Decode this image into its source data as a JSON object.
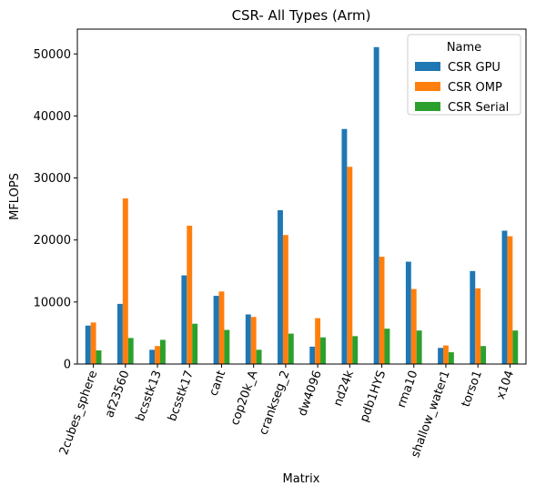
{
  "chart_data": {
    "type": "bar",
    "title": "CSR- All Types (Arm)",
    "xlabel": "Matrix",
    "ylabel": "MFLOPS",
    "ylim": [
      0,
      54000
    ],
    "yticks": [
      0,
      10000,
      20000,
      30000,
      40000,
      50000
    ],
    "grid": false,
    "legend": {
      "title": "Name",
      "placement": "top-right"
    },
    "categories": [
      "2cubes_sphere",
      "af23560",
      "bcsstk13",
      "bcsstk17",
      "cant",
      "cop20k_A",
      "crankseg_2",
      "dw4096",
      "nd24k",
      "pdb1HYS",
      "rma10",
      "shallow_water1",
      "torso1",
      "x104"
    ],
    "series": [
      {
        "name": "CSR GPU",
        "color": "#1f77b4",
        "values": [
          6200,
          9700,
          2300,
          14300,
          11000,
          8000,
          24800,
          2800,
          37900,
          51100,
          16500,
          2600,
          15000,
          21500
        ]
      },
      {
        "name": "CSR OMP",
        "color": "#ff7f0e",
        "values": [
          6700,
          26700,
          2900,
          22300,
          11700,
          7600,
          20800,
          7400,
          31800,
          17300,
          12100,
          3000,
          12200,
          20600
        ]
      },
      {
        "name": "CSR Serial",
        "color": "#2ca02c",
        "values": [
          2200,
          4200,
          3900,
          6500,
          5500,
          2300,
          4900,
          4300,
          4500,
          5700,
          5400,
          1900,
          2900,
          5400
        ]
      }
    ]
  }
}
